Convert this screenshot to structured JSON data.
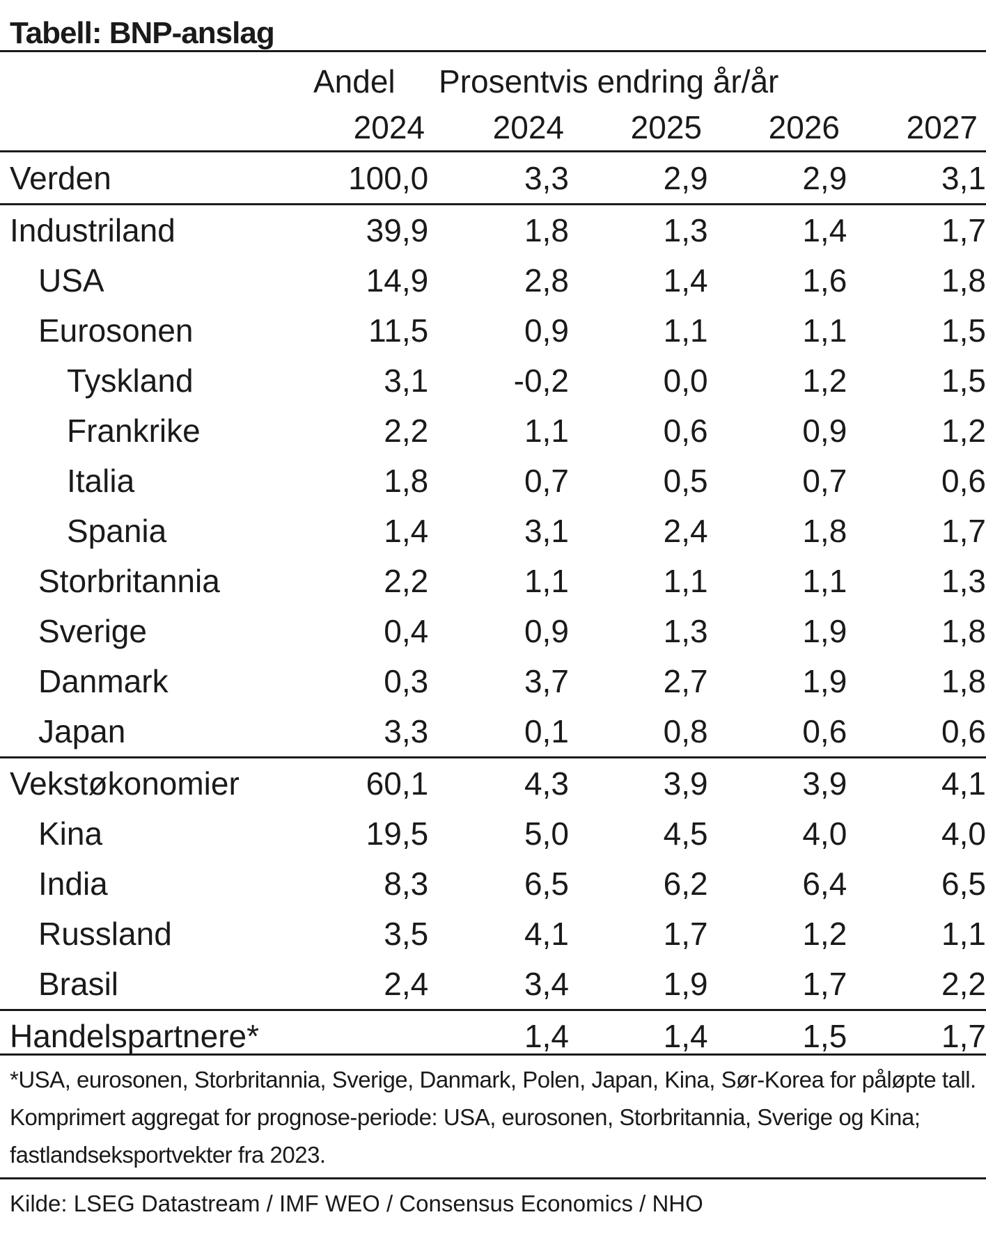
{
  "title": "Tabell: BNP-anslag",
  "header": {
    "share_label": "Andel",
    "change_label": "Prosentvis endring år/år",
    "share_year": "2024",
    "years": [
      "2024",
      "2025",
      "2026",
      "2027"
    ]
  },
  "rows": [
    {
      "name": "Verden",
      "indent": 0,
      "share": "100,0",
      "values": [
        "3,3",
        "2,9",
        "2,9",
        "3,1"
      ]
    },
    {
      "name": "Industriland",
      "indent": 0,
      "share": "39,9",
      "values": [
        "1,8",
        "1,3",
        "1,4",
        "1,7"
      ],
      "sep": true
    },
    {
      "name": "USA",
      "indent": 1,
      "share": "14,9",
      "values": [
        "2,8",
        "1,4",
        "1,6",
        "1,8"
      ]
    },
    {
      "name": "Eurosonen",
      "indent": 1,
      "share": "11,5",
      "values": [
        "0,9",
        "1,1",
        "1,1",
        "1,5"
      ]
    },
    {
      "name": "Tyskland",
      "indent": 2,
      "share": "3,1",
      "values": [
        "-0,2",
        "0,0",
        "1,2",
        "1,5"
      ]
    },
    {
      "name": "Frankrike",
      "indent": 2,
      "share": "2,2",
      "values": [
        "1,1",
        "0,6",
        "0,9",
        "1,2"
      ]
    },
    {
      "name": "Italia",
      "indent": 2,
      "share": "1,8",
      "values": [
        "0,7",
        "0,5",
        "0,7",
        "0,6"
      ]
    },
    {
      "name": "Spania",
      "indent": 2,
      "share": "1,4",
      "values": [
        "3,1",
        "2,4",
        "1,8",
        "1,7"
      ]
    },
    {
      "name": "Storbritannia",
      "indent": 1,
      "share": "2,2",
      "values": [
        "1,1",
        "1,1",
        "1,1",
        "1,3"
      ]
    },
    {
      "name": "Sverige",
      "indent": 1,
      "share": "0,4",
      "values": [
        "0,9",
        "1,3",
        "1,9",
        "1,8"
      ]
    },
    {
      "name": "Danmark",
      "indent": 1,
      "share": "0,3",
      "values": [
        "3,7",
        "2,7",
        "1,9",
        "1,8"
      ]
    },
    {
      "name": "Japan",
      "indent": 1,
      "share": "3,3",
      "values": [
        "0,1",
        "0,8",
        "0,6",
        "0,6"
      ]
    },
    {
      "name": "Vekstøkonomier",
      "indent": 0,
      "share": "60,1",
      "values": [
        "4,3",
        "3,9",
        "3,9",
        "4,1"
      ],
      "sep": true
    },
    {
      "name": "Kina",
      "indent": 1,
      "share": "19,5",
      "values": [
        "5,0",
        "4,5",
        "4,0",
        "4,0"
      ]
    },
    {
      "name": "India",
      "indent": 1,
      "share": "8,3",
      "values": [
        "6,5",
        "6,2",
        "6,4",
        "6,5"
      ]
    },
    {
      "name": "Russland",
      "indent": 1,
      "share": "3,5",
      "values": [
        "4,1",
        "1,7",
        "1,2",
        "1,1"
      ]
    },
    {
      "name": "Brasil",
      "indent": 1,
      "share": "2,4",
      "values": [
        "3,4",
        "1,9",
        "1,7",
        "2,2"
      ]
    },
    {
      "name": "Handelspartnere*",
      "indent": 0,
      "share": "",
      "values": [
        "1,4",
        "1,4",
        "1,5",
        "1,7"
      ],
      "sep": true
    }
  ],
  "footnote": "*USA, eurosonen, Storbritannia, Sverige, Danmark, Polen, Japan, Kina, Sør-Korea for påløpte tall. Komprimert aggregat for prognose-periode: USA, eurosonen, Storbritannia, Sverige og Kina; fastlandseksportvekter fra 2023.",
  "source": "Kilde: LSEG Datastream / IMF WEO / Consensus Economics / NHO"
}
